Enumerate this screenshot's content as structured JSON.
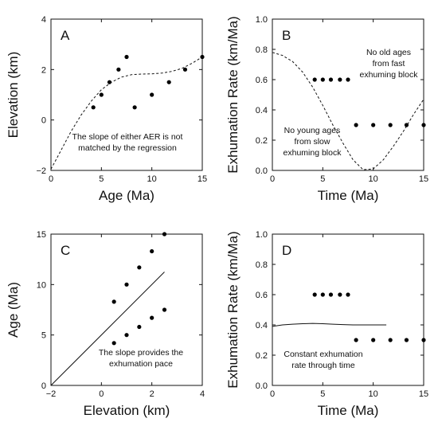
{
  "chart_data": [
    {
      "id": "A",
      "type": "scatter",
      "panel_label": "A",
      "xlabel": "Age (Ma)",
      "ylabel": "Elevation (km)",
      "xlim": [
        0,
        15
      ],
      "ylim": [
        -2,
        4
      ],
      "xticks": [
        "0",
        "5",
        "10",
        "15"
      ],
      "yticks": [
        "−2",
        "0",
        "2",
        "4"
      ],
      "xtick_values": [
        0,
        5,
        10,
        15
      ],
      "ytick_values": [
        -2,
        0,
        2,
        4
      ],
      "points": [
        [
          4.2,
          0.5
        ],
        [
          5.0,
          1.0
        ],
        [
          5.8,
          1.5
        ],
        [
          6.7,
          2.0
        ],
        [
          7.5,
          2.5
        ],
        [
          8.3,
          0.5
        ],
        [
          10.0,
          1.0
        ],
        [
          11.7,
          1.5
        ],
        [
          13.3,
          2.0
        ],
        [
          15.0,
          2.5
        ]
      ],
      "curve": {
        "style": "dashed",
        "x": [
          0,
          1,
          2,
          3,
          4,
          5,
          6,
          7,
          8,
          9,
          10,
          11,
          12,
          13,
          14,
          15
        ],
        "y": [
          -1.95,
          -1.2,
          -0.45,
          0.2,
          0.75,
          1.2,
          1.5,
          1.7,
          1.8,
          1.82,
          1.83,
          1.86,
          1.93,
          2.05,
          2.25,
          2.5
        ]
      },
      "annotations": [
        "The slope of either AER is not",
        "matched by the regression"
      ]
    },
    {
      "id": "B",
      "type": "scatter",
      "panel_label": "B",
      "xlabel": "Time (Ma)",
      "ylabel": "Exhumation Rate (km/Ma)",
      "xlim": [
        0,
        15
      ],
      "ylim": [
        0,
        1
      ],
      "xticks": [
        "0",
        "5",
        "10",
        "15"
      ],
      "yticks": [
        "0.0",
        "0.2",
        "0.4",
        "0.6",
        "0.8",
        "1.0"
      ],
      "xtick_values": [
        0,
        5,
        10,
        15
      ],
      "ytick_values": [
        0,
        0.2,
        0.4,
        0.6,
        0.8,
        1.0
      ],
      "points": [
        [
          4.2,
          0.6
        ],
        [
          5.0,
          0.6
        ],
        [
          5.8,
          0.6
        ],
        [
          6.7,
          0.6
        ],
        [
          7.5,
          0.6
        ],
        [
          8.3,
          0.3
        ],
        [
          10.0,
          0.3
        ],
        [
          11.7,
          0.3
        ],
        [
          13.3,
          0.3
        ],
        [
          15.0,
          0.3
        ]
      ],
      "curve": {
        "style": "dashed",
        "x": [
          0,
          1,
          2,
          3,
          4,
          5,
          6,
          7,
          8,
          9,
          10,
          11,
          12,
          13,
          14,
          15
        ],
        "y": [
          0.78,
          0.76,
          0.72,
          0.65,
          0.55,
          0.43,
          0.3,
          0.18,
          0.07,
          0.005,
          0.01,
          0.07,
          0.16,
          0.26,
          0.37,
          0.47
        ]
      },
      "annotations": {
        "top_right": [
          "No old ages",
          "from fast",
          "exhuming block"
        ],
        "bottom_left": [
          "No young ages",
          "from slow",
          "exhuming block"
        ]
      }
    },
    {
      "id": "C",
      "type": "scatter",
      "panel_label": "C",
      "xlabel": "Elevation (km)",
      "ylabel": "Age (Ma)",
      "xlim": [
        -2,
        4
      ],
      "ylim": [
        0,
        15
      ],
      "xticks": [
        "−2",
        "0",
        "2",
        "4"
      ],
      "yticks": [
        "0",
        "5",
        "10",
        "15"
      ],
      "xtick_values": [
        -2,
        0,
        2,
        4
      ],
      "ytick_values": [
        0,
        5,
        10,
        15
      ],
      "points": [
        [
          0.5,
          8.3
        ],
        [
          1.0,
          10.0
        ],
        [
          1.5,
          11.7
        ],
        [
          2.0,
          13.3
        ],
        [
          2.5,
          15.0
        ],
        [
          0.5,
          4.2
        ],
        [
          1.0,
          5.0
        ],
        [
          1.5,
          5.8
        ],
        [
          2.0,
          6.7
        ],
        [
          2.5,
          7.5
        ]
      ],
      "line": {
        "style": "solid",
        "x": [
          -2,
          2.5
        ],
        "y": [
          0,
          11.25
        ]
      },
      "annotations": [
        "The slope provides the",
        "exhumation pace"
      ]
    },
    {
      "id": "D",
      "type": "scatter",
      "panel_label": "D",
      "xlabel": "Time (Ma)",
      "ylabel": "Exhumation Rate (km/Ma)",
      "xlim": [
        0,
        15
      ],
      "ylim": [
        0,
        1
      ],
      "xticks": [
        "0",
        "5",
        "10",
        "15"
      ],
      "yticks": [
        "0.0",
        "0.2",
        "0.4",
        "0.6",
        "0.8",
        "1.0"
      ],
      "xtick_values": [
        0,
        5,
        10,
        15
      ],
      "ytick_values": [
        0,
        0.2,
        0.4,
        0.6,
        0.8,
        1.0
      ],
      "points": [
        [
          4.2,
          0.6
        ],
        [
          5.0,
          0.6
        ],
        [
          5.8,
          0.6
        ],
        [
          6.7,
          0.6
        ],
        [
          7.5,
          0.6
        ],
        [
          8.3,
          0.3
        ],
        [
          10.0,
          0.3
        ],
        [
          11.7,
          0.3
        ],
        [
          13.3,
          0.3
        ],
        [
          15.0,
          0.3
        ]
      ],
      "curve": {
        "style": "solid",
        "x": [
          0,
          1,
          2,
          3,
          4,
          5,
          6,
          7,
          8,
          9,
          10,
          11.3
        ],
        "y": [
          0.39,
          0.4,
          0.405,
          0.408,
          0.41,
          0.408,
          0.405,
          0.402,
          0.4,
          0.4,
          0.4,
          0.4
        ]
      },
      "annotations": [
        "Constant exhumation",
        "rate through time"
      ]
    }
  ]
}
